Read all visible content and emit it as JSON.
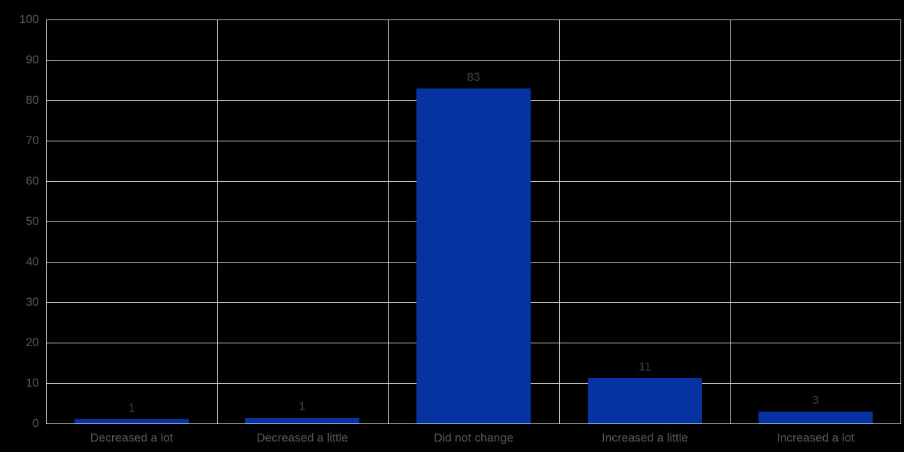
{
  "chart_data": {
    "type": "bar",
    "title": "",
    "xlabel": "",
    "ylabel": "",
    "categories": [
      "Decreased a lot",
      "Decreased a little",
      "Did not change",
      "Increased a little",
      "Increased a lot"
    ],
    "values": [
      1,
      1,
      83,
      11,
      3
    ],
    "data_labels": [
      "1",
      "1",
      "83",
      "11",
      "3"
    ],
    "bar_heights_pct": [
      1.0,
      1.4,
      82.9,
      11.2,
      3.0
    ],
    "ylim": [
      0,
      100
    ],
    "ytick_step": 10,
    "ytick_labels": [
      "0",
      "10",
      "20",
      "30",
      "40",
      "50",
      "60",
      "70",
      "80",
      "90",
      "100"
    ],
    "grid": "horizontal lines every 10 units, vertical lines at category boundaries",
    "legend": "none",
    "colors": {
      "bar": "#0533A1",
      "grid": "#D9D9D9",
      "axis": "#D9D9D9",
      "tick_text": "#595959",
      "data_label_text": "#404040",
      "background": "#000000"
    }
  }
}
